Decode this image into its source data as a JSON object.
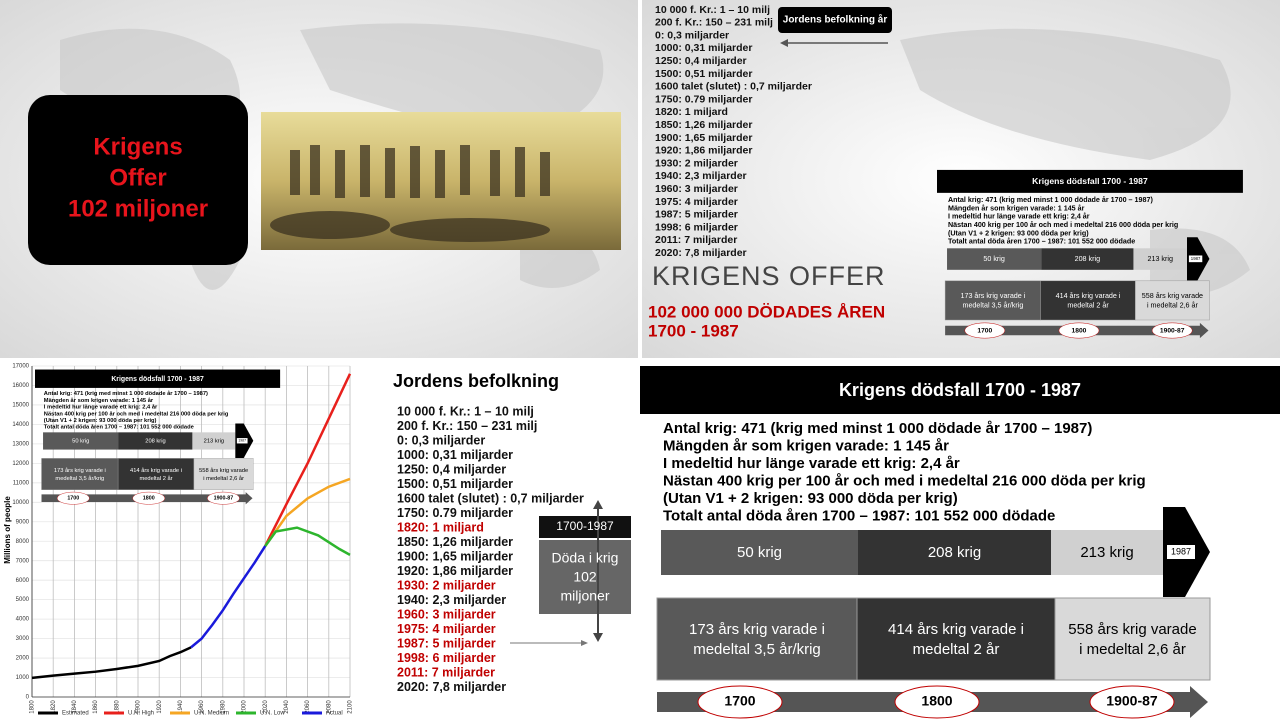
{
  "slide1": {
    "title_lines": [
      "Krigens",
      "Offer",
      "102 miljoner"
    ]
  },
  "population": [
    "10 000 f. Kr.: 1 – 10 milj",
    "200 f. Kr.: 150 – 231 milj",
    "0: 0,3 miljarder",
    "1000: 0,31 miljarder",
    "1250: 0,4 miljarder",
    "1500: 0,51 miljarder",
    "1600 talet (slutet) : 0,7 miljarder",
    "1750: 0.79 miljarder",
    "1820: 1 miljard",
    "1850: 1,26 miljarder",
    "1900: 1,65 miljarder",
    "1920: 1,86 miljarder",
    "1930: 2 miljarder",
    "1940: 2,3 miljarder",
    "1960: 3 miljarder",
    "1975: 4 miljarder",
    "1987: 5 miljarder",
    "1998: 6 miljarder",
    "2011: 7 miljarder",
    "2020: 7,8 miljarder"
  ],
  "slide2": {
    "badge": "Jordens befolkning år",
    "heading": "KRIGENS OFFER",
    "subheading_lines": [
      "102 000 000 DÖDADES ÅREN",
      "1700 - 1987"
    ]
  },
  "slide3": {
    "heading": "Jordens befolkning",
    "highlighted": [
      8,
      12,
      14,
      15,
      16,
      17,
      18
    ],
    "highlight_color": "#c00000",
    "box_label": "1700-1987",
    "box_lines": [
      "Döda i krig",
      "102",
      "miljoner"
    ]
  },
  "infographic": {
    "title": "Krigens dödsfall 1700 - 1987",
    "stats": [
      "Antal krig: 471 (krig med minst 1 000 dödade år 1700 – 1987)",
      "Mängden år som krigen varade: 1 145 år",
      "I medeltid hur länge varade ett krig: 2,4 år",
      "Nästan 400 krig per 100 år och med i medeltal 216 000 döda per krig",
      "(Utan V1 + 2 krigen: 93 000 döda per krig)",
      "Totalt antal döda åren 1700 – 1987: 101 552 000 dödade"
    ],
    "counts": [
      "50 krig",
      "208 krig",
      "213 krig"
    ],
    "end_label": "1987",
    "durations": [
      [
        "173 års krig varade i",
        "medeltal 3,5 år/krig"
      ],
      [
        "414 års krig varade i",
        "medeltal 2 år"
      ],
      [
        "558 års krig varade",
        "i medeltal 2,6 år"
      ]
    ],
    "timeline": [
      "1700",
      "1800",
      "1900-87"
    ]
  },
  "chart_data": {
    "type": "line",
    "y_label": "Millions of people",
    "xlim": [
      1800,
      2100
    ],
    "xticks": [
      1800,
      1820,
      1840,
      1860,
      1880,
      1900,
      1920,
      1940,
      1960,
      1980,
      2000,
      2020,
      2040,
      2060,
      2080,
      2100
    ],
    "ylim": [
      0,
      17000
    ],
    "yticks": [
      0,
      1000,
      2000,
      3000,
      4000,
      5000,
      6000,
      7000,
      8000,
      9000,
      10000,
      11000,
      12000,
      13000,
      14000,
      15000,
      16000,
      17000
    ],
    "grid": true,
    "series": [
      {
        "name": "Estimated",
        "color": "#000000",
        "x": [
          1800,
          1820,
          1840,
          1860,
          1880,
          1900,
          1920,
          1930,
          1940,
          1950
        ],
        "values": [
          980,
          1100,
          1200,
          1300,
          1440,
          1600,
          1850,
          2100,
          2300,
          2550
        ]
      },
      {
        "name": "U.N. High",
        "color": "#e8201c",
        "x": [
          2020,
          2040,
          2060,
          2080,
          2100
        ],
        "values": [
          7750,
          9900,
          12000,
          14300,
          16600
        ]
      },
      {
        "name": "U.N. Medium",
        "color": "#f5a623",
        "x": [
          2020,
          2040,
          2060,
          2080,
          2100
        ],
        "values": [
          7750,
          9300,
          10200,
          10800,
          11200
        ]
      },
      {
        "name": "U.N. Low",
        "color": "#2db52d",
        "x": [
          2020,
          2030,
          2050,
          2070,
          2090,
          2100
        ],
        "values": [
          7750,
          8500,
          8700,
          8300,
          7600,
          7300
        ]
      },
      {
        "name": "Actual",
        "color": "#1a1adb",
        "x": [
          1950,
          1960,
          1970,
          1980,
          1990,
          2000,
          2010,
          2020
        ],
        "values": [
          2550,
          3000,
          3700,
          4450,
          5300,
          6100,
          6900,
          7750
        ]
      }
    ]
  }
}
